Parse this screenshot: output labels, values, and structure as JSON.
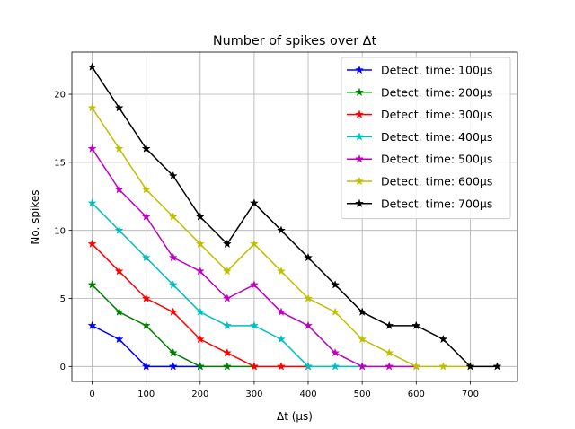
{
  "chart_data": {
    "type": "line",
    "title": "Number of spikes over Δt",
    "xlabel": "Δt (μs)",
    "ylabel": "No. spikes",
    "xlim": [
      -37.5,
      787.5
    ],
    "ylim": [
      -1.1,
      23.1
    ],
    "xticks": [
      0,
      100,
      200,
      300,
      400,
      500,
      600,
      700
    ],
    "yticks": [
      0,
      5,
      10,
      15,
      20
    ],
    "grid": true,
    "legend_position": "top-right",
    "marker": "star",
    "x": [
      0,
      50,
      100,
      150,
      200,
      250,
      300,
      350,
      400,
      450,
      500,
      550,
      600,
      650,
      700,
      750
    ],
    "series": [
      {
        "name": "Detect. time: 100μs",
        "color": "#0000ff",
        "x": [
          0,
          50,
          100,
          150,
          200
        ],
        "values": [
          3,
          2,
          0,
          0,
          0
        ]
      },
      {
        "name": "Detect. time: 200μs",
        "color": "#008000",
        "x": [
          0,
          50,
          100,
          150,
          200,
          250,
          300
        ],
        "values": [
          6,
          4,
          3,
          1,
          0,
          0,
          0
        ]
      },
      {
        "name": "Detect. time: 300μs",
        "color": "#ff0000",
        "x": [
          0,
          50,
          100,
          150,
          200,
          250,
          300,
          350,
          400
        ],
        "values": [
          9,
          7,
          5,
          4,
          2,
          1,
          0,
          0,
          0
        ]
      },
      {
        "name": "Detect. time: 400μs",
        "color": "#00bfbf",
        "x": [
          0,
          50,
          100,
          150,
          200,
          250,
          300,
          350,
          400,
          450,
          500
        ],
        "values": [
          12,
          10,
          8,
          6,
          4,
          3,
          3,
          2,
          0,
          0,
          0
        ]
      },
      {
        "name": "Detect. time: 500μs",
        "color": "#bf00bf",
        "x": [
          0,
          50,
          100,
          150,
          200,
          250,
          300,
          350,
          400,
          450,
          500,
          550,
          600
        ],
        "values": [
          16,
          13,
          11,
          8,
          7,
          5,
          6,
          4,
          3,
          1,
          0,
          0,
          0
        ]
      },
      {
        "name": "Detect. time: 600μs",
        "color": "#bfbf00",
        "x": [
          0,
          50,
          100,
          150,
          200,
          250,
          300,
          350,
          400,
          450,
          500,
          550,
          600,
          650,
          700
        ],
        "values": [
          19,
          16,
          13,
          11,
          9,
          7,
          9,
          7,
          5,
          4,
          2,
          1,
          0,
          0,
          0
        ]
      },
      {
        "name": "Detect. time: 700μs",
        "color": "#000000",
        "x": [
          0,
          50,
          100,
          150,
          200,
          250,
          300,
          350,
          400,
          450,
          500,
          550,
          600,
          650,
          700,
          750
        ],
        "values": [
          22,
          19,
          16,
          14,
          11,
          9,
          12,
          10,
          8,
          6,
          4,
          3,
          3,
          2,
          0,
          0
        ]
      }
    ]
  }
}
